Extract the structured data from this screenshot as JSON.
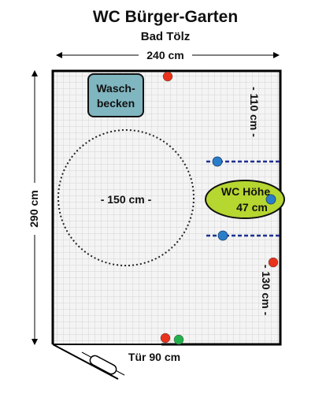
{
  "header": {
    "title": "WC Bürger-Garten",
    "subtitle": "Bad Tölz"
  },
  "dimensions": {
    "width_label": "240 cm",
    "height_label": "290 cm",
    "circle_label": "- 150 cm -",
    "upper_gap_label": "- 110 cm -",
    "lower_gap_label": "- 130 cm -",
    "door_label": "Tür 90 cm"
  },
  "fixtures": {
    "sink_line1": "Wasch-",
    "sink_line2": "becken",
    "wc_line1": "WC Höhe",
    "wc_line2": "47 cm"
  },
  "colors": {
    "sink_fill": "#7fb6c0",
    "wc_fill": "#b6d630",
    "grab_bar": "#1f2f8f",
    "marker_red": "#e8321c",
    "marker_blue": "#2a7ec8",
    "marker_green": "#22b04a",
    "wall": "#000000",
    "floor_grid": "#d6d6d6"
  }
}
